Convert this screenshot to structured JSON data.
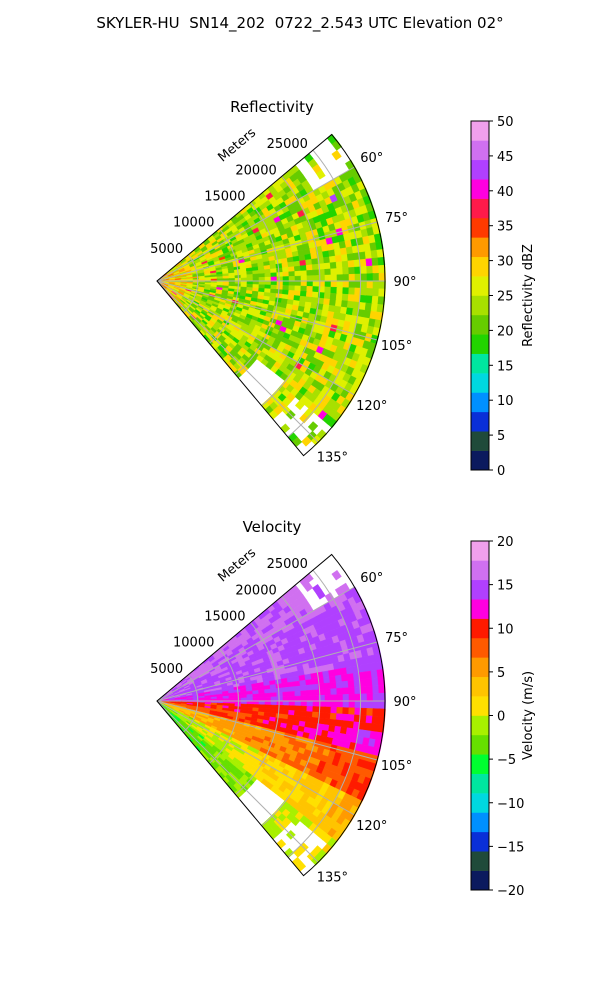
{
  "title": "SKYLER-HU  SN14_202  0722_2.543 UTC Elevation 02°",
  "chart_data": [
    {
      "type": "heatmap",
      "subtype": "polar-sector (PPI)",
      "title": "Reflectivity",
      "range_label": "Meters",
      "range_ticks": [
        "5000",
        "10000",
        "15000",
        "20000",
        "25000"
      ],
      "range_values": [
        5000,
        10000,
        15000,
        20000,
        25000
      ],
      "range_max": 28000,
      "azimuth_range_deg": [
        50,
        140
      ],
      "azimuth_ticks": [
        "60°",
        "75°",
        "90°",
        "105°",
        "120°",
        "135°"
      ],
      "azimuth_values": [
        60,
        75,
        90,
        105,
        120,
        135
      ],
      "grid": true,
      "colorbar": {
        "label": "Reflectivity dBZ",
        "range": [
          0,
          50
        ],
        "ticks": [
          "0",
          "5",
          "10",
          "15",
          "20",
          "25",
          "30",
          "35",
          "40",
          "45",
          "50"
        ],
        "tick_values": [
          0,
          5,
          10,
          15,
          20,
          25,
          30,
          35,
          40,
          45,
          50
        ],
        "colors": [
          "#0b1a5e",
          "#1f4a3a",
          "#0a2fd8",
          "#0090ff",
          "#00d8e0",
          "#00e6a0",
          "#22d400",
          "#66cc00",
          "#a8e000",
          "#e0f000",
          "#ffd400",
          "#ff9a00",
          "#ff3a00",
          "#ff1a4a",
          "#ff00e0",
          "#b040ff",
          "#d070f0",
          "#f0a0ec"
        ]
      },
      "field_summary": "Mostly 20–32 dBZ (green–yellow–orange) across the sector, with isolated 35–42 dBZ red/magenta spots; strongest returns near the radar origin."
    },
    {
      "type": "heatmap",
      "subtype": "polar-sector (PPI)",
      "title": "Velocity",
      "range_label": "Meters",
      "range_ticks": [
        "5000",
        "10000",
        "15000",
        "20000",
        "25000"
      ],
      "range_values": [
        5000,
        10000,
        15000,
        20000,
        25000
      ],
      "range_max": 28000,
      "azimuth_range_deg": [
        50,
        140
      ],
      "azimuth_ticks": [
        "60°",
        "75°",
        "90°",
        "105°",
        "120°",
        "135°"
      ],
      "azimuth_values": [
        60,
        75,
        90,
        105,
        120,
        135
      ],
      "grid": true,
      "colorbar": {
        "label": "Velocity (m/s)",
        "range": [
          -20,
          20
        ],
        "ticks": [
          "−20",
          "−15",
          "−10",
          "−5",
          "0",
          "5",
          "10",
          "15",
          "20"
        ],
        "tick_values": [
          -20,
          -15,
          -10,
          -5,
          0,
          5,
          10,
          15,
          20
        ],
        "colors": [
          "#0b1a5e",
          "#1f4a3a",
          "#0a2fd8",
          "#0090ff",
          "#00d8e0",
          "#00e6a0",
          "#00ff30",
          "#66e000",
          "#a8f000",
          "#ffe000",
          "#ffc400",
          "#ff9a00",
          "#ff5a00",
          "#ff1a00",
          "#ff00e0",
          "#b040ff",
          "#d070f0",
          "#f0a0ec"
        ]
      },
      "bands": [
        {
          "azimuth_deg": [
            50,
            62
          ],
          "value": 16
        },
        {
          "azimuth_deg": [
            62,
            80
          ],
          "value": 15
        },
        {
          "azimuth_deg": [
            80,
            92
          ],
          "value": 13
        },
        {
          "azimuth_deg": [
            92,
            104
          ],
          "value": 10
        },
        {
          "azimuth_deg": [
            104,
            116
          ],
          "value": 6
        },
        {
          "azimuth_deg": [
            116,
            128
          ],
          "value": 1
        },
        {
          "azimuth_deg": [
            128,
            140
          ],
          "value": -2
        }
      ]
    }
  ]
}
